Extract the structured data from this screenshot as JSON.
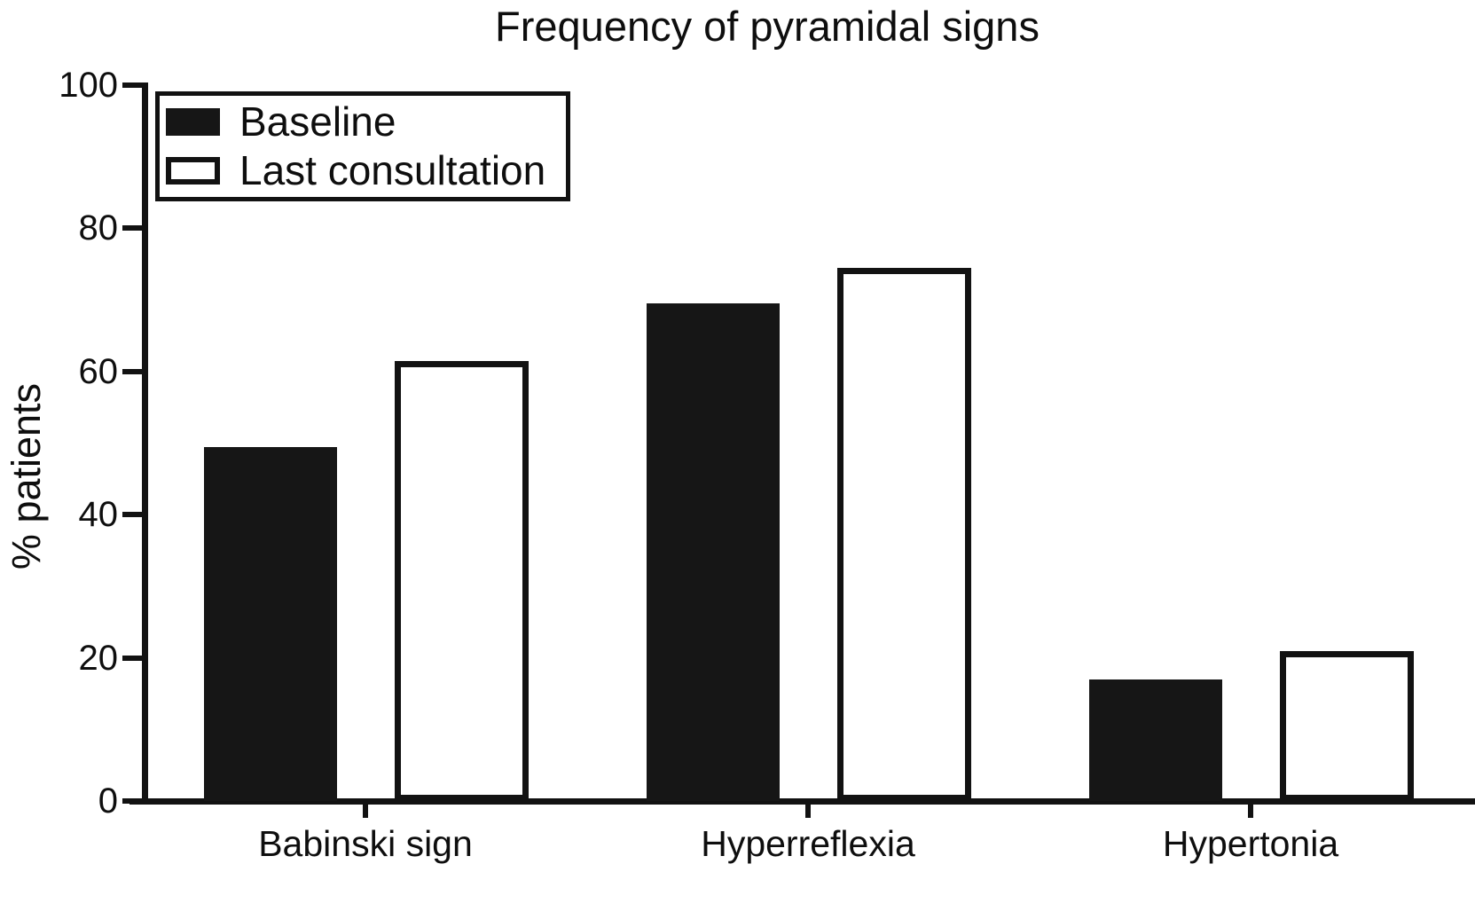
{
  "title": "Frequency of pyramidal signs",
  "chart_data": {
    "type": "bar",
    "title": "Frequency of pyramidal signs",
    "xlabel": "",
    "ylabel": "% patients",
    "categories": [
      "Babinski sign",
      "Hyperreflexia",
      "Hypertonia"
    ],
    "series": [
      {
        "name": "Baseline",
        "style": "filled",
        "values": [
          49.5,
          69.5,
          17
        ]
      },
      {
        "name": "Last consultation",
        "style": "outlined",
        "values": [
          61.5,
          74.5,
          21
        ]
      }
    ],
    "ylim": [
      0,
      100
    ],
    "yticks": [
      0,
      20,
      40,
      60,
      80,
      100
    ],
    "grid": false,
    "legend_position": "upper-left",
    "colors": {
      "bar_filled": "#161616",
      "bar_outline": "#121212",
      "axis": "#121212",
      "text": "#0e0e0e",
      "background": "#ffffff"
    }
  }
}
